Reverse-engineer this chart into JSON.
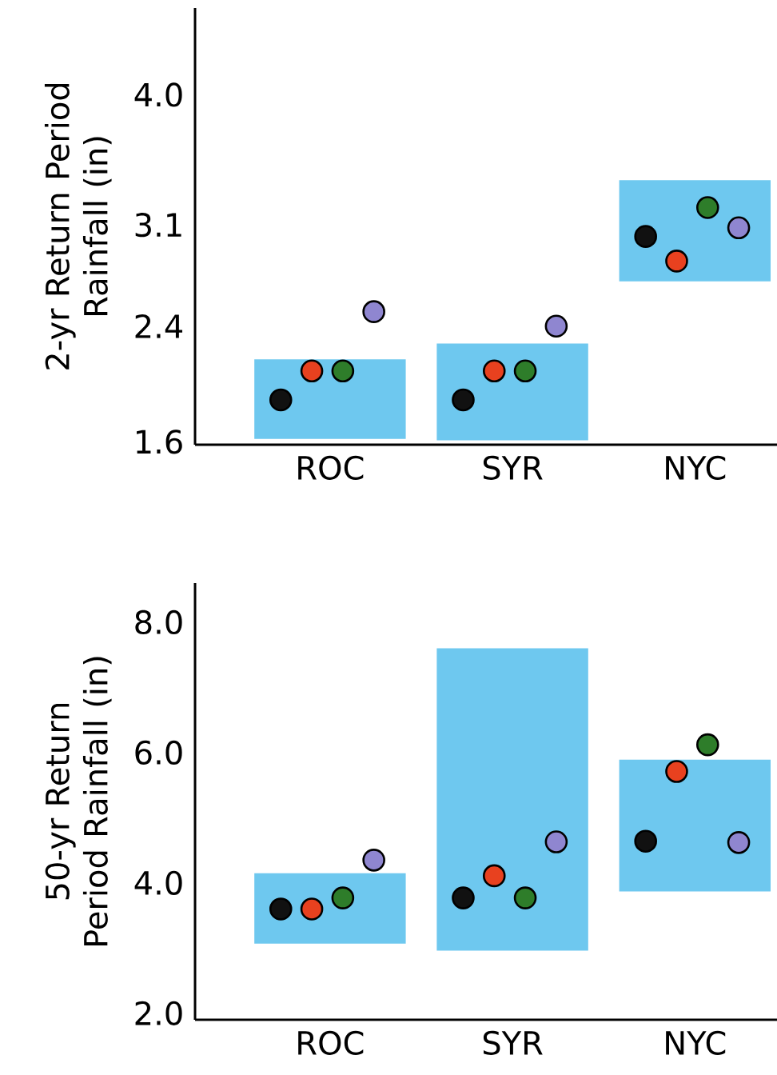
{
  "chart_data": [
    {
      "type": "bar",
      "ylabel": "2-yr Return Period Rainfall (in)",
      "categories": [
        "ROC",
        "SYR",
        "NYC"
      ],
      "ylim": [
        1.58,
        4.6
      ],
      "yticks": [
        {
          "value": 1.6,
          "label": "1.6"
        },
        {
          "value": 2.4,
          "label": "2.4"
        },
        {
          "value": 3.1,
          "label": "3.1"
        },
        {
          "value": 4.0,
          "label": "4.0"
        }
      ],
      "marker": "circle",
      "series": [
        {
          "color": "#6ec8ef",
          "base": [
            1.62,
            1.61,
            2.71
          ],
          "values": [
            0.55,
            0.67,
            0.7
          ]
        },
        {
          "type": "scatter",
          "color": "#111111",
          "values": [
            1.89,
            1.89,
            3.02
          ]
        },
        {
          "type": "scatter",
          "color": "#e8411f",
          "values": [
            2.09,
            2.09,
            2.85
          ]
        },
        {
          "type": "scatter",
          "color": "#2e7d2a",
          "values": [
            2.09,
            2.09,
            3.22
          ]
        },
        {
          "type": "scatter",
          "color": "#8f86d0",
          "values": [
            2.5,
            2.4,
            3.08
          ]
        }
      ]
    },
    {
      "type": "bar",
      "ylabel": "50-yr Return Period Rainfall (in)",
      "categories": [
        "ROC",
        "SYR",
        "NYC"
      ],
      "ylim": [
        1.9,
        8.6
      ],
      "yticks": [
        {
          "value": 2.0,
          "label": "2.0"
        },
        {
          "value": 4.0,
          "label": "4.0"
        },
        {
          "value": 6.0,
          "label": "6.0"
        },
        {
          "value": 8.0,
          "label": "8.0"
        }
      ],
      "marker": "circle",
      "series": [
        {
          "color": "#6ec8ef",
          "base": [
            3.07,
            2.96,
            3.87
          ],
          "values": [
            1.08,
            4.64,
            2.02
          ]
        },
        {
          "type": "scatter",
          "color": "#111111",
          "values": [
            3.6,
            3.77,
            4.64
          ]
        },
        {
          "type": "scatter",
          "color": "#e8411f",
          "values": [
            3.6,
            4.11,
            5.71
          ]
        },
        {
          "type": "scatter",
          "color": "#2e7d2a",
          "values": [
            3.77,
            3.77,
            6.12
          ]
        },
        {
          "type": "scatter",
          "color": "#8f86d0",
          "values": [
            4.35,
            4.63,
            4.62
          ]
        }
      ]
    }
  ]
}
